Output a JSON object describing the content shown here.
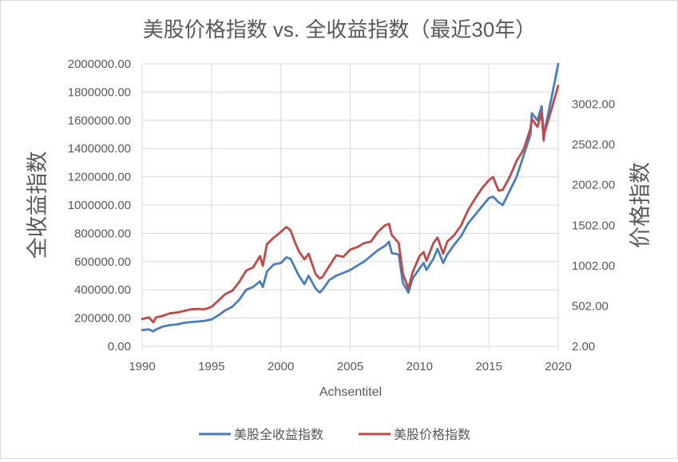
{
  "chart_data": {
    "type": "line",
    "title": "美股价格指数 vs. 全收益指数（最近30年）",
    "xlabel": "Achsentitel",
    "ylabel_left": "全收益指数",
    "ylabel_right": "价格指数",
    "xlim": [
      1990,
      2020
    ],
    "ylim_left": [
      0,
      2000000
    ],
    "ylim_right": [
      2,
      3502
    ],
    "x_ticks": [
      "1990",
      "1995",
      "2000",
      "2005",
      "2010",
      "2015",
      "2020"
    ],
    "y_ticks_left": [
      "0.00",
      "200000.00",
      "400000.00",
      "600000.00",
      "800000.00",
      "1000000.00",
      "1200000.00",
      "1400000.00",
      "1600000.00",
      "1800000.00",
      "2000000.00"
    ],
    "y_ticks_right": [
      "2.00",
      "502.00",
      "1002.00",
      "1502.00",
      "2002.00",
      "2502.00",
      "3002.00"
    ],
    "grid": true,
    "legend_position": "bottom",
    "colors": {
      "total_return": "#4a7ebb",
      "price": "#be4b48",
      "grid": "#d9d9d9",
      "text": "#595959"
    },
    "series": [
      {
        "name": "美股全收益指数",
        "axis": "left",
        "color": "#4a7ebb",
        "x": [
          1990,
          1990.5,
          1990.8,
          1991,
          1991.5,
          1992,
          1992.5,
          1993,
          1993.5,
          1994,
          1994.5,
          1995,
          1995.5,
          1996,
          1996.5,
          1997,
          1997.5,
          1998,
          1998.5,
          1998.7,
          1999,
          1999.5,
          2000,
          2000.4,
          2000.7,
          2001,
          2001.3,
          2001.7,
          2002,
          2002.5,
          2002.8,
          2003,
          2003.5,
          2004,
          2004.5,
          2005,
          2005.5,
          2006,
          2006.5,
          2007,
          2007.5,
          2007.8,
          2008,
          2008.5,
          2008.8,
          2009.2,
          2009.5,
          2010,
          2010.3,
          2010.5,
          2011,
          2011.3,
          2011.7,
          2012,
          2012.5,
          2013,
          2013.5,
          2014,
          2014.5,
          2015,
          2015.3,
          2015.7,
          2016,
          2016.5,
          2017,
          2017.5,
          2018,
          2018.1,
          2018.5,
          2018.8,
          2018.95,
          2019,
          2019.5,
          2020
        ],
        "y": [
          115000,
          120000,
          105000,
          120000,
          140000,
          150000,
          155000,
          165000,
          172000,
          175000,
          180000,
          190000,
          220000,
          255000,
          280000,
          330000,
          400000,
          420000,
          460000,
          420000,
          530000,
          580000,
          590000,
          630000,
          620000,
          560000,
          500000,
          440000,
          500000,
          410000,
          380000,
          400000,
          470000,
          500000,
          520000,
          540000,
          570000,
          600000,
          640000,
          680000,
          710000,
          740000,
          660000,
          650000,
          450000,
          380000,
          480000,
          550000,
          590000,
          540000,
          620000,
          690000,
          590000,
          650000,
          720000,
          780000,
          870000,
          930000,
          990000,
          1050000,
          1060000,
          1020000,
          1000000,
          1100000,
          1200000,
          1350000,
          1500000,
          1650000,
          1600000,
          1700000,
          1500000,
          1520000,
          1750000,
          2000000
        ]
      },
      {
        "name": "美股价格指数",
        "axis": "right",
        "color": "#be4b48",
        "x": [
          1990,
          1990.5,
          1990.8,
          1991,
          1991.5,
          1992,
          1992.5,
          1993,
          1993.5,
          1994,
          1994.5,
          1995,
          1995.5,
          1996,
          1996.5,
          1997,
          1997.5,
          1998,
          1998.5,
          1998.7,
          1999,
          1999.5,
          2000,
          2000.4,
          2000.7,
          2001,
          2001.3,
          2001.7,
          2002,
          2002.5,
          2002.8,
          2003,
          2003.5,
          2004,
          2004.5,
          2005,
          2005.5,
          2006,
          2006.5,
          2007,
          2007.5,
          2007.8,
          2008,
          2008.5,
          2008.8,
          2009.2,
          2009.5,
          2010,
          2010.3,
          2010.5,
          2011,
          2011.3,
          2011.7,
          2012,
          2012.5,
          2013,
          2013.5,
          2014,
          2014.5,
          2015,
          2015.3,
          2015.7,
          2016,
          2016.5,
          2017,
          2017.5,
          2018,
          2018.1,
          2018.5,
          2018.8,
          2018.95,
          2019,
          2019.5,
          2020
        ],
        "y": [
          340,
          360,
          300,
          360,
          380,
          410,
          420,
          440,
          460,
          465,
          460,
          490,
          570,
          650,
          690,
          800,
          940,
          980,
          1120,
          1000,
          1270,
          1350,
          1420,
          1480,
          1440,
          1300,
          1180,
          1080,
          1150,
          900,
          840,
          860,
          1000,
          1130,
          1110,
          1200,
          1230,
          1280,
          1300,
          1420,
          1500,
          1520,
          1380,
          1280,
          900,
          720,
          920,
          1120,
          1170,
          1060,
          1280,
          1350,
          1150,
          1300,
          1380,
          1500,
          1690,
          1830,
          1960,
          2060,
          2100,
          1930,
          1940,
          2100,
          2300,
          2440,
          2700,
          2820,
          2720,
          2900,
          2550,
          2640,
          2930,
          3230
        ]
      }
    ]
  }
}
